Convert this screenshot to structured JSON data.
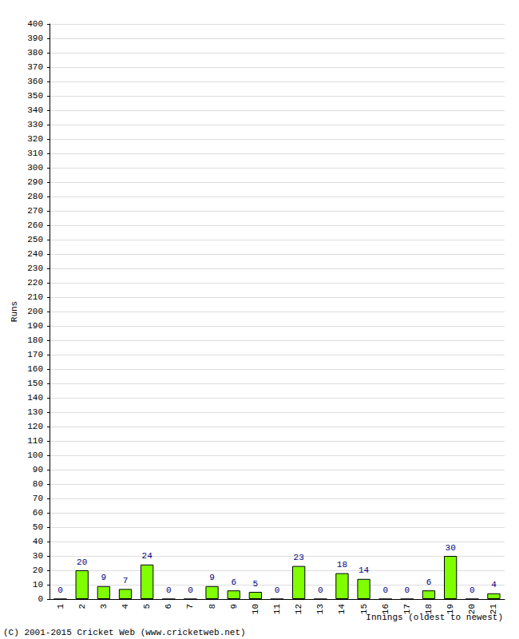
{
  "chart_data": {
    "type": "bar",
    "categories": [
      "1",
      "2",
      "3",
      "4",
      "5",
      "6",
      "7",
      "8",
      "9",
      "10",
      "11",
      "12",
      "13",
      "14",
      "15",
      "16",
      "17",
      "18",
      "19",
      "20",
      "21"
    ],
    "values": [
      0,
      20,
      9,
      7,
      24,
      0,
      0,
      9,
      6,
      5,
      0,
      23,
      0,
      18,
      14,
      0,
      0,
      6,
      30,
      0,
      4
    ],
    "color": "#80ff00",
    "x_label": "Innings (oldest to newest)",
    "y_label": "Runs",
    "annotations": [
      "(C) 2001-2015 Cricket Web (www.cricketweb.net)"
    ],
    "ylim": [
      0,
      400
    ],
    "yticks": [
      0,
      10,
      20,
      30,
      40,
      50,
      60,
      70,
      80,
      90,
      100,
      110,
      120,
      130,
      140,
      150,
      160,
      170,
      180,
      190,
      200,
      210,
      220,
      230,
      240,
      250,
      260,
      270,
      280,
      290,
      300,
      310,
      320,
      330,
      340,
      350,
      360,
      370,
      380,
      390,
      400
    ],
    "grid": true,
    "data_labels": true
  }
}
